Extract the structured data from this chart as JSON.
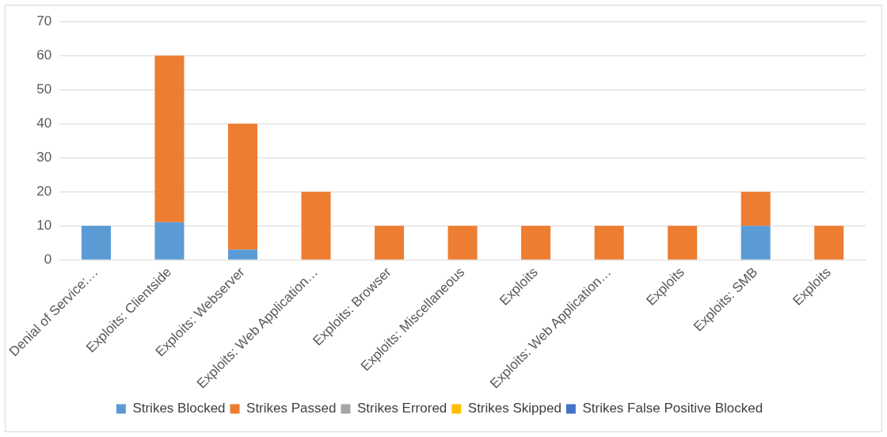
{
  "chart_data": {
    "type": "bar",
    "stacked": true,
    "categories": [
      "Denial of Service:…",
      "Exploits: Clientside",
      "Exploits: Webserver",
      "Exploits: Web Application…",
      "Exploits: Browser",
      "Exploits: Miscellaneous",
      "Exploits",
      "Exploits: Web Application…",
      "Exploits",
      "Exploits: SMB",
      "Exploits"
    ],
    "series": [
      {
        "name": "Strikes Blocked",
        "color": "#5b9bd5",
        "values": [
          10,
          11,
          3,
          0,
          0,
          0,
          0,
          0,
          0,
          10,
          0
        ]
      },
      {
        "name": "Strikes Passed",
        "color": "#ed7d31",
        "values": [
          0,
          49,
          37,
          20,
          10,
          10,
          10,
          10,
          10,
          10,
          10
        ]
      },
      {
        "name": "Strikes Errored",
        "color": "#a5a5a5",
        "values": [
          0,
          0,
          0,
          0,
          0,
          0,
          0,
          0,
          0,
          0,
          0
        ]
      },
      {
        "name": "Strikes Skipped",
        "color": "#ffc000",
        "values": [
          0,
          0,
          0,
          0,
          0,
          0,
          0,
          0,
          0,
          0,
          0
        ]
      },
      {
        "name": "Strikes False Positive Blocked",
        "color": "#4472c4",
        "values": [
          0,
          0,
          0,
          0,
          0,
          0,
          0,
          0,
          0,
          0,
          0
        ]
      }
    ],
    "ylim": [
      0,
      70
    ],
    "yticks": [
      0,
      10,
      20,
      30,
      40,
      50,
      60,
      70
    ],
    "grid": "y",
    "legend": "bottom"
  }
}
